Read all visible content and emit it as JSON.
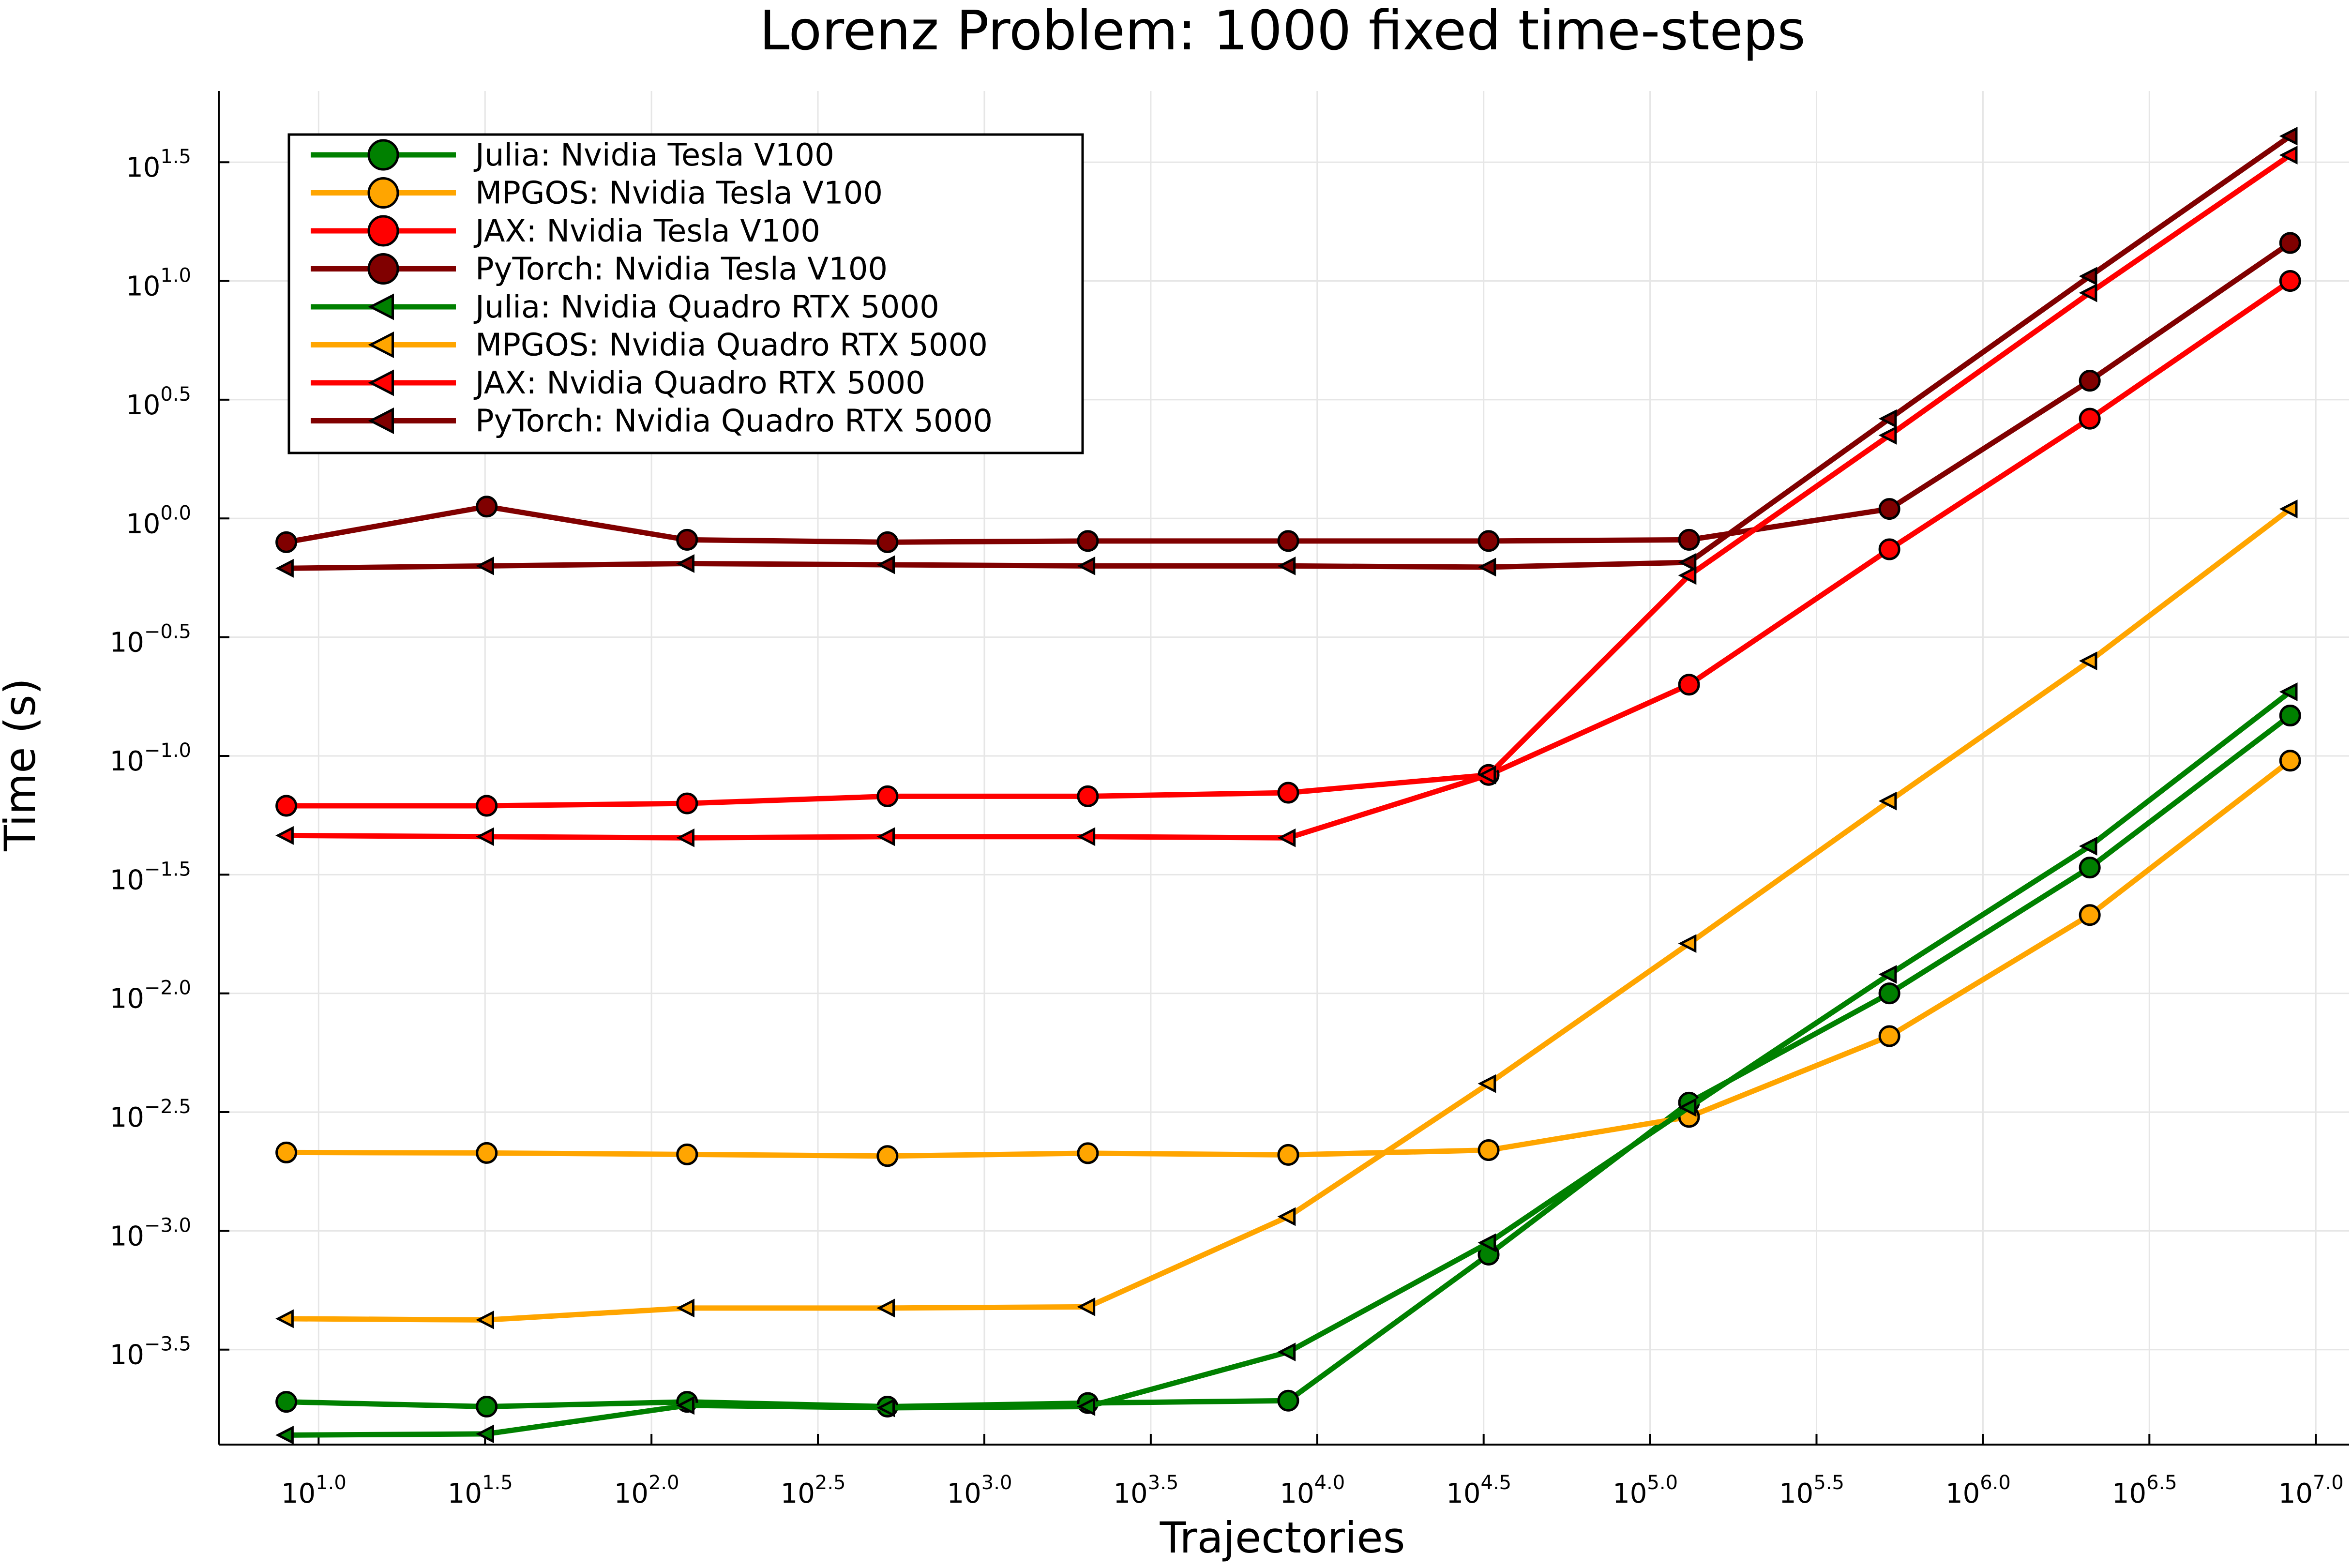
{
  "chart_data": {
    "type": "line",
    "title": "Lorenz Problem: 1000 fixed time-steps",
    "xlabel": "Trajectories",
    "ylabel": "Time (s)",
    "x_scale": "log10",
    "y_scale": "log10",
    "xlim_log10": [
      0.7,
      7.1
    ],
    "ylim_log10": [
      -3.9,
      1.8
    ],
    "x_ticks": [
      {
        "base": "10",
        "exp": "1.0",
        "value": 1.0
      },
      {
        "base": "10",
        "exp": "1.5",
        "value": 1.5
      },
      {
        "base": "10",
        "exp": "2.0",
        "value": 2.0
      },
      {
        "base": "10",
        "exp": "2.5",
        "value": 2.5
      },
      {
        "base": "10",
        "exp": "3.0",
        "value": 3.0
      },
      {
        "base": "10",
        "exp": "3.5",
        "value": 3.5
      },
      {
        "base": "10",
        "exp": "4.0",
        "value": 4.0
      },
      {
        "base": "10",
        "exp": "4.5",
        "value": 4.5
      },
      {
        "base": "10",
        "exp": "5.0",
        "value": 5.0
      },
      {
        "base": "10",
        "exp": "5.5",
        "value": 5.5
      },
      {
        "base": "10",
        "exp": "6.0",
        "value": 6.0
      },
      {
        "base": "10",
        "exp": "6.5",
        "value": 6.5
      },
      {
        "base": "10",
        "exp": "7.0",
        "value": 7.0
      }
    ],
    "y_ticks": [
      {
        "base": "10",
        "exp": "1.5",
        "value": 1.5
      },
      {
        "base": "10",
        "exp": "1.0",
        "value": 1.0
      },
      {
        "base": "10",
        "exp": "0.5",
        "value": 0.5
      },
      {
        "base": "10",
        "exp": "0.0",
        "value": 0.0
      },
      {
        "base": "10",
        "exp": "−0.5",
        "value": -0.5
      },
      {
        "base": "10",
        "exp": "−1.0",
        "value": -1.0
      },
      {
        "base": "10",
        "exp": "−1.5",
        "value": -1.5
      },
      {
        "base": "10",
        "exp": "−2.0",
        "value": -2.0
      },
      {
        "base": "10",
        "exp": "−2.5",
        "value": -2.5
      },
      {
        "base": "10",
        "exp": "−3.0",
        "value": -3.0
      },
      {
        "base": "10",
        "exp": "−3.5",
        "value": -3.5
      }
    ],
    "grid": true,
    "legend_position": "top-left",
    "x_log10": [
      0.903,
      1.505,
      2.107,
      2.709,
      3.311,
      3.913,
      4.515,
      5.117,
      5.719,
      6.321,
      6.923
    ],
    "series": [
      {
        "name": "Julia: Nvidia Tesla V100",
        "color": "#008000",
        "marker": "circle",
        "y_log10": [
          -3.72,
          -3.74,
          -3.72,
          -3.74,
          -3.725,
          -3.715,
          -3.1,
          -2.46,
          -2.0,
          -1.47,
          -0.83
        ]
      },
      {
        "name": "MPGOS: Nvidia Tesla V100",
        "color": "#FFA500",
        "marker": "circle",
        "y_log10": [
          -2.67,
          -2.672,
          -2.678,
          -2.685,
          -2.673,
          -2.68,
          -2.66,
          -2.52,
          -2.18,
          -1.67,
          -1.02
        ]
      },
      {
        "name": "JAX: Nvidia Tesla V100",
        "color": "#FF0000",
        "marker": "circle",
        "y_log10": [
          -1.21,
          -1.21,
          -1.2,
          -1.17,
          -1.17,
          -1.155,
          -1.08,
          -0.7,
          -0.13,
          0.42,
          1.0
        ]
      },
      {
        "name": "PyTorch: Nvidia Tesla V100",
        "color": "#800000",
        "marker": "circle",
        "y_log10": [
          -0.1,
          0.05,
          -0.09,
          -0.1,
          -0.095,
          -0.095,
          -0.095,
          -0.09,
          0.04,
          0.58,
          1.16
        ]
      },
      {
        "name": "Julia: Nvidia Quadro RTX 5000",
        "color": "#008000",
        "marker": "triangle-left",
        "y_log10": [
          -3.86,
          -3.855,
          -3.735,
          -3.745,
          -3.74,
          -3.51,
          -3.05,
          -2.48,
          -1.92,
          -1.38,
          -0.73
        ]
      },
      {
        "name": "MPGOS: Nvidia Quadro RTX 5000",
        "color": "#FFA500",
        "marker": "triangle-left",
        "y_log10": [
          -3.37,
          -3.375,
          -3.325,
          -3.325,
          -3.32,
          -2.94,
          -2.38,
          -1.79,
          -1.19,
          -0.6,
          0.04
        ]
      },
      {
        "name": "JAX: Nvidia Quadro RTX 5000",
        "color": "#FF0000",
        "marker": "triangle-left",
        "y_log10": [
          -1.335,
          -1.34,
          -1.345,
          -1.34,
          -1.34,
          -1.345,
          -1.08,
          -0.24,
          0.35,
          0.95,
          1.53
        ]
      },
      {
        "name": "PyTorch: Nvidia Quadro RTX 5000",
        "color": "#800000",
        "marker": "triangle-left",
        "y_log10": [
          -0.21,
          -0.2,
          -0.19,
          -0.195,
          -0.2,
          -0.2,
          -0.205,
          -0.185,
          0.42,
          1.02,
          1.61
        ]
      }
    ]
  }
}
